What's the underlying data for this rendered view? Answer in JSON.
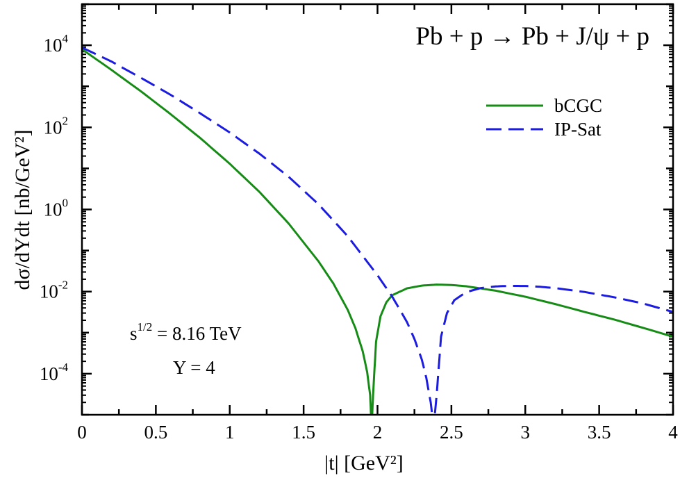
{
  "chart_data": {
    "type": "line",
    "title": "Pb + p → Pb + J/ψ + p",
    "xlabel": "|t| [GeV²]",
    "ylabel": "dσ/dYdt [nb/GeV²]",
    "xlim": [
      0,
      4
    ],
    "ylim": [
      1e-05,
      100000
    ],
    "yscale": "log",
    "grid": false,
    "legend_position": "top-right",
    "x_ticks": [
      0,
      0.5,
      1,
      1.5,
      2,
      2.5,
      3,
      3.5,
      4
    ],
    "x_tick_labels": [
      "0",
      "0.5",
      "1",
      "1.5",
      "2",
      "2.5",
      "3",
      "3.5",
      "4"
    ],
    "y_ticks": [
      0.0001,
      0.01,
      1,
      100,
      10000
    ],
    "y_tick_labels": [
      {
        "base": "10",
        "exp": "-4"
      },
      {
        "base": "10",
        "exp": "-2"
      },
      {
        "base": "10",
        "exp": "0"
      },
      {
        "base": "10",
        "exp": "2"
      },
      {
        "base": "10",
        "exp": "4"
      }
    ],
    "annotations": [
      {
        "base": "s",
        "sup": "1/2",
        "rest": " = 8.16 TeV"
      },
      {
        "text": "Y = 4"
      }
    ],
    "series": [
      {
        "name": "bCGC",
        "color": "#168c16",
        "style": "solid",
        "zero": 1.96,
        "x": [
          0,
          0.2,
          0.4,
          0.6,
          0.8,
          1.0,
          1.2,
          1.4,
          1.6,
          1.7,
          1.8,
          1.85,
          1.9,
          1.93,
          1.95,
          1.96,
          1.97,
          1.99,
          2.02,
          2.06,
          2.1,
          2.2,
          2.3,
          2.4,
          2.5,
          2.6,
          2.8,
          3.0,
          3.2,
          3.4,
          3.6,
          3.8,
          4.0
        ],
        "y": [
          8000,
          2500,
          750,
          210,
          55,
          13,
          2.7,
          0.45,
          0.055,
          0.016,
          0.0035,
          0.0013,
          0.00035,
          0.00011,
          3e-05,
          5e-06,
          3e-05,
          0.0006,
          0.0025,
          0.0055,
          0.0082,
          0.012,
          0.014,
          0.0148,
          0.0145,
          0.0135,
          0.0105,
          0.0075,
          0.005,
          0.0032,
          0.0021,
          0.0013,
          0.0008
        ]
      },
      {
        "name": "IP-Sat",
        "color": "#1c1ce0",
        "style": "dashed",
        "zero": 2.38,
        "x": [
          0,
          0.2,
          0.4,
          0.6,
          0.8,
          1.0,
          1.2,
          1.4,
          1.6,
          1.8,
          2.0,
          2.1,
          2.2,
          2.25,
          2.3,
          2.33,
          2.36,
          2.38,
          2.4,
          2.43,
          2.47,
          2.52,
          2.6,
          2.7,
          2.8,
          2.9,
          3.0,
          3.1,
          3.2,
          3.4,
          3.6,
          3.8,
          4.0
        ],
        "y": [
          8800,
          4000,
          1600,
          620,
          220,
          75,
          23,
          6.2,
          1.35,
          0.22,
          0.025,
          0.0075,
          0.0018,
          0.0007,
          0.00022,
          8e-05,
          2e-05,
          5e-06,
          3e-05,
          0.0008,
          0.003,
          0.0062,
          0.0097,
          0.0122,
          0.0134,
          0.0138,
          0.0137,
          0.0131,
          0.0122,
          0.0098,
          0.0073,
          0.0051,
          0.0032
        ]
      }
    ]
  }
}
